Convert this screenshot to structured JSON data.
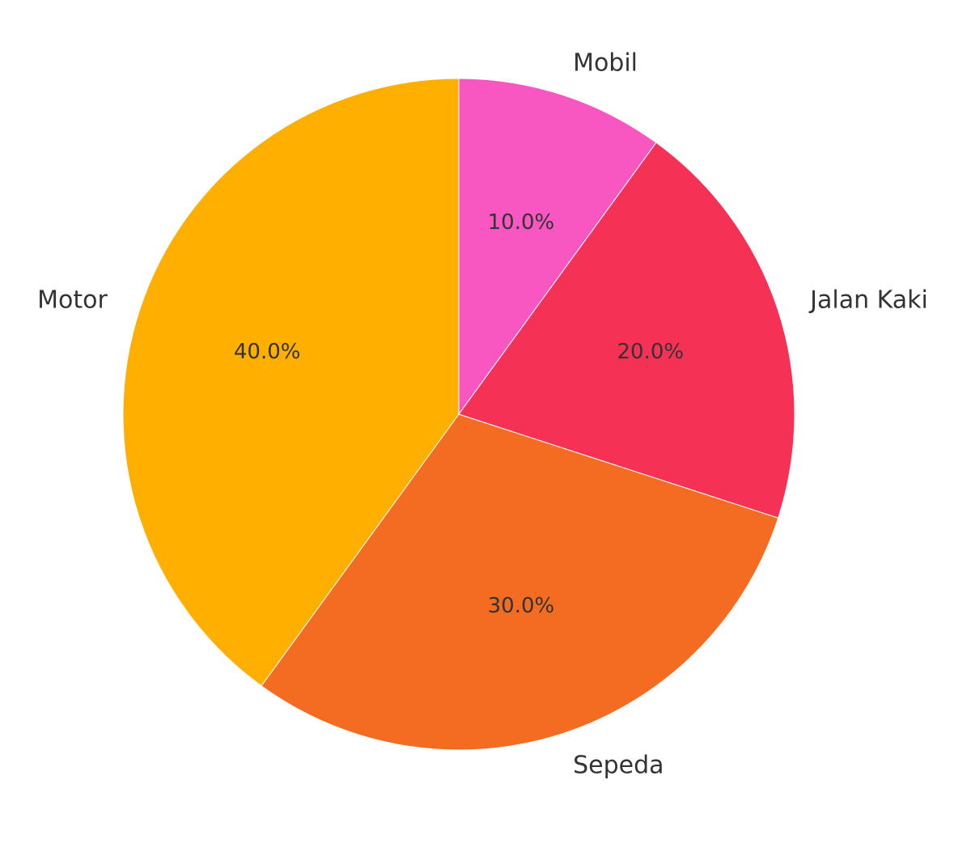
{
  "chart_data": {
    "type": "pie",
    "title": "",
    "start_angle": "top",
    "direction": "clockwise",
    "slices": [
      {
        "label": "Mobil",
        "value": 10,
        "pct_label": "10.0%",
        "color": "#F857C1"
      },
      {
        "label": "Jalan Kaki",
        "value": 20,
        "pct_label": "20.0%",
        "color": "#F53255"
      },
      {
        "label": "Sepeda",
        "value": 30,
        "pct_label": "30.0%",
        "color": "#F36C21"
      },
      {
        "label": "Motor",
        "value": 40,
        "pct_label": "40.0%",
        "color": "#FFAF00"
      }
    ]
  }
}
